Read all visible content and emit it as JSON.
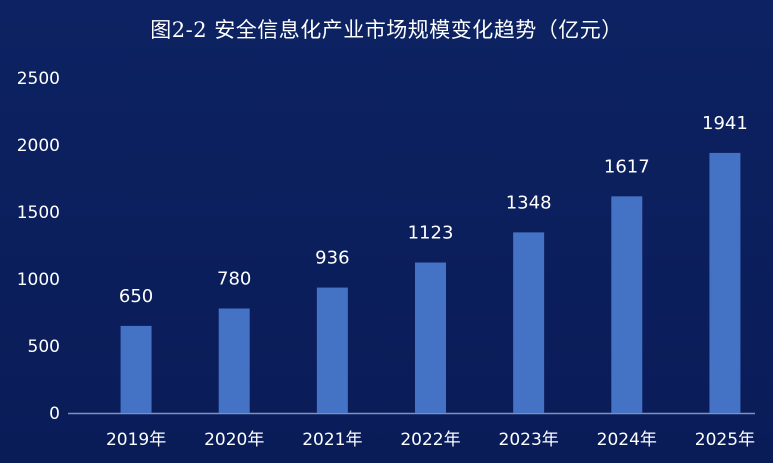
{
  "chart_data": {
    "type": "bar",
    "title": "图2-2  安全信息化产业市场规模变化趋势（亿元）",
    "categories": [
      "2019年",
      "2020年",
      "2021年",
      "2022年",
      "2023年",
      "2024年",
      "2025年"
    ],
    "values": [
      650,
      780,
      936,
      1123,
      1348,
      1617,
      1941
    ],
    "y_ticks": [
      0,
      500,
      1000,
      1500,
      2000,
      2500
    ],
    "ylim": [
      0,
      2500
    ],
    "grid": false,
    "legend": "none",
    "colors": {
      "bar": "#4472c4",
      "background": "#0b1f5e",
      "text": "#ffffff",
      "axis": "#7f8fbf"
    }
  }
}
